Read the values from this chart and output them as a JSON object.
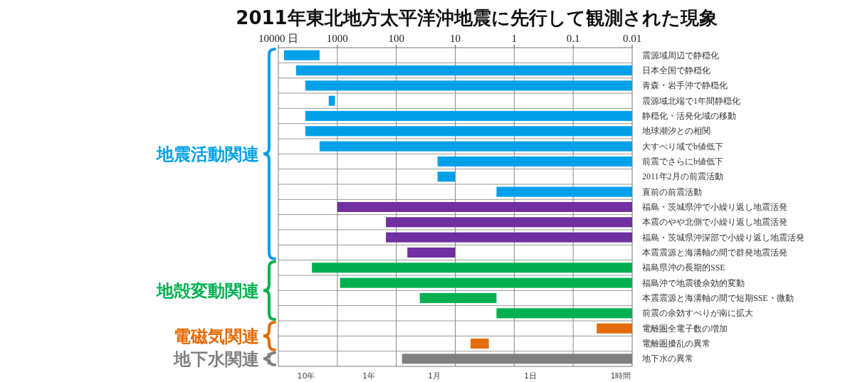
{
  "chart_data": {
    "type": "bar",
    "orientation": "horizontal",
    "log": "x",
    "title": "2011年東北地方太平洋沖地震に先行して観測された現象",
    "categories": [
      "震源域周辺で静穏化",
      "日本全国で静穏化",
      "青森・岩手沖で静穏化",
      "震源域北端で1年間静穏化",
      "静穏化・活発化域の移動",
      "地球潮汐との相関",
      "大すべり域でb値低下",
      "前震でさらにb値低下",
      "2011年2月の前震活動",
      "直前の前震活動",
      "福島・茨城県沖で小繰り返し地震活発",
      "本震のやや北側で小繰り返し地震活発",
      "福島・茨城県沖深部で小繰り返し地震活発",
      "本震震源と海溝軸の間で群発地震活発",
      "福島県沖の長期的SSE",
      "福島沖で地震後余効的変動",
      "本震震源と海溝軸の間で短期SSE・微動",
      "前震の余効すべりが南に拡大",
      "電離圏全電子数の増加",
      "電離圏擾乱の異常",
      "地下水の異常"
    ],
    "base": [
      2000,
      0.01,
      0.01,
      1100,
      0.01,
      0.01,
      0.01,
      0.01,
      10,
      0.01,
      0.01,
      0.01,
      0.01,
      10,
      0.01,
      0.01,
      2,
      0.01,
      0.01,
      2.7,
      0.01
    ],
    "values": [
      6000,
      4999.99,
      3499.99,
      300,
      3499.99,
      3499.99,
      1999.99,
      19.99,
      10,
      1.99,
      999.99,
      149.99,
      149.99,
      55,
      2699.99,
      899.99,
      38,
      1.99,
      0.03,
      2.8,
      79.99
    ],
    "colors": [
      "#00a0e9",
      "#00a0e9",
      "#00a0e9",
      "#00a0e9",
      "#00a0e9",
      "#00a0e9",
      "#00a0e9",
      "#00a0e9",
      "#00a0e9",
      "#00a0e9",
      "#7030a0",
      "#7030a0",
      "#7030a0",
      "#7030a0",
      "#00b050",
      "#00b050",
      "#00b050",
      "#00b050",
      "#e46c0a",
      "#e46c0a",
      "#808080"
    ],
    "xlim": [
      10000,
      0.01
    ],
    "xticks": [
      {
        "value": 10000,
        "label": "10000 日"
      },
      1000,
      100,
      10,
      1,
      0.1,
      0.01
    ],
    "grid": true,
    "annotations": [
      "地震活動関連",
      "地殻変動関連",
      "電磁気関連",
      "地下水関連",
      "10年",
      "1年",
      "1月",
      "1日",
      "1時間"
    ]
  }
}
